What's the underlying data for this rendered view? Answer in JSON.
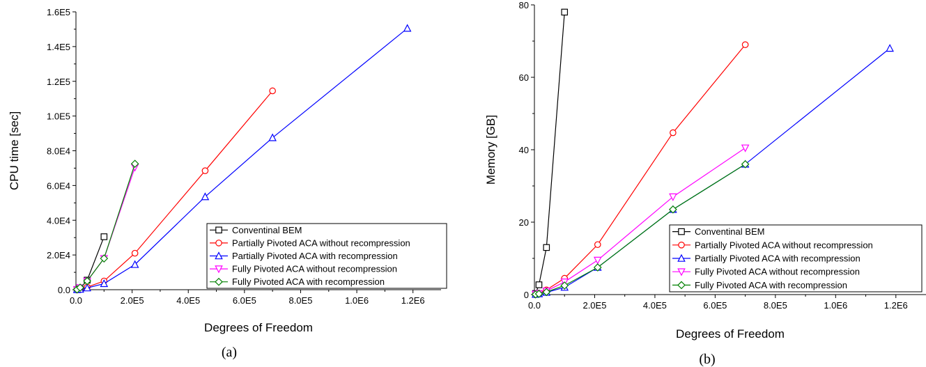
{
  "colors": {
    "conventional": "#000000",
    "pp_norecomp": "#ff0000",
    "pp_recomp": "#0000ff",
    "fp_norecomp": "#ff00ff",
    "fp_recomp": "#008000"
  },
  "chart_data": [
    {
      "type": "line",
      "caption": "(a)",
      "xlabel": "Degrees of Freedom",
      "ylabel": "CPU time [sec]",
      "xlim": [
        0,
        1300000
      ],
      "ylim": [
        0,
        160000
      ],
      "xticks": [
        0,
        200000,
        400000,
        600000,
        800000,
        1000000,
        1200000
      ],
      "xtick_labels": [
        "0.0",
        "2.0E5",
        "4.0E5",
        "6.0E5",
        "8.0E5",
        "1.0E6",
        "1.2E6"
      ],
      "yticks": [
        0,
        20000,
        40000,
        60000,
        80000,
        100000,
        120000,
        140000,
        160000
      ],
      "ytick_labels": [
        "0.0",
        "2.0E4",
        "4.0E4",
        "6.0E4",
        "8.0E4",
        "1.0E5",
        "1.2E5",
        "1.4E5",
        "1.6E5"
      ],
      "grid": false,
      "legend_position": "bottom-right",
      "series": [
        {
          "name": "Conventinal BEM",
          "color_key": "conventional",
          "marker": "square",
          "x": [
            4000,
            15000,
            40000,
            100000
          ],
          "y": [
            100,
            800,
            5500,
            30500
          ]
        },
        {
          "name": "Partially Pivoted ACA without recompression",
          "color_key": "pp_norecomp",
          "marker": "circle",
          "x": [
            4000,
            15000,
            40000,
            100000,
            210000,
            460000,
            700000
          ],
          "y": [
            50,
            300,
            1500,
            5000,
            21000,
            68500,
            114500
          ]
        },
        {
          "name": "Partially Pivoted ACA with recompression",
          "color_key": "pp_recomp",
          "marker": "triangle-up",
          "x": [
            4000,
            15000,
            40000,
            100000,
            210000,
            460000,
            700000,
            1180000
          ],
          "y": [
            30,
            200,
            1000,
            3500,
            14500,
            53500,
            87500,
            150500
          ]
        },
        {
          "name": "Fully Pivoted ACA without recompression",
          "color_key": "fp_norecomp",
          "marker": "triangle-down",
          "x": [
            4000,
            15000,
            40000,
            100000,
            210000
          ],
          "y": [
            150,
            1200,
            5000,
            18000,
            70500
          ]
        },
        {
          "name": "Fully Pivoted ACA with recompression",
          "color_key": "fp_recomp",
          "marker": "diamond",
          "x": [
            4000,
            15000,
            40000,
            100000,
            210000
          ],
          "y": [
            150,
            1200,
            5000,
            18000,
            72500
          ]
        }
      ]
    },
    {
      "type": "line",
      "caption": "(b)",
      "xlabel": "Degrees of Freedom",
      "ylabel": "Memory [GB]",
      "xlim": [
        0,
        1300000
      ],
      "ylim": [
        0,
        80
      ],
      "xticks": [
        0,
        200000,
        400000,
        600000,
        800000,
        1000000,
        1200000
      ],
      "xtick_labels": [
        "0.0",
        "2.0E5",
        "4.0E5",
        "6.0E5",
        "8.0E5",
        "1.0E6",
        "1.2E6"
      ],
      "yticks": [
        0,
        20,
        40,
        60,
        80
      ],
      "ytick_labels": [
        "0",
        "20",
        "40",
        "60",
        "80"
      ],
      "grid": false,
      "legend_position": "bottom-right",
      "series": [
        {
          "name": "Conventinal BEM",
          "color_key": "conventional",
          "marker": "square",
          "x": [
            4000,
            15000,
            40000,
            100000
          ],
          "y": [
            0.3,
            2.7,
            13,
            78
          ]
        },
        {
          "name": "Partially Pivoted ACA without recompression",
          "color_key": "pp_norecomp",
          "marker": "circle",
          "x": [
            4000,
            15000,
            40000,
            100000,
            210000,
            460000,
            700000
          ],
          "y": [
            0.1,
            0.4,
            1.3,
            4.5,
            13.8,
            44.7,
            69
          ]
        },
        {
          "name": "Partially Pivoted ACA with recompression",
          "color_key": "pp_recomp",
          "marker": "triangle-up",
          "x": [
            4000,
            15000,
            40000,
            100000,
            210000,
            460000,
            700000,
            1180000
          ],
          "y": [
            0.05,
            0.2,
            0.6,
            2,
            7.5,
            23.5,
            36,
            68
          ]
        },
        {
          "name": "Fully Pivoted ACA without recompression",
          "color_key": "fp_norecomp",
          "marker": "triangle-down",
          "x": [
            4000,
            15000,
            40000,
            100000,
            210000,
            460000,
            700000
          ],
          "y": [
            0.1,
            0.3,
            1,
            3.5,
            9.5,
            27,
            40.5
          ]
        },
        {
          "name": "Fully Pivoted ACA with recompression",
          "color_key": "fp_recomp",
          "marker": "diamond",
          "x": [
            4000,
            15000,
            40000,
            100000,
            210000,
            460000,
            700000
          ],
          "y": [
            0.05,
            0.2,
            0.7,
            2.5,
            7.5,
            23.5,
            36
          ]
        }
      ]
    }
  ]
}
